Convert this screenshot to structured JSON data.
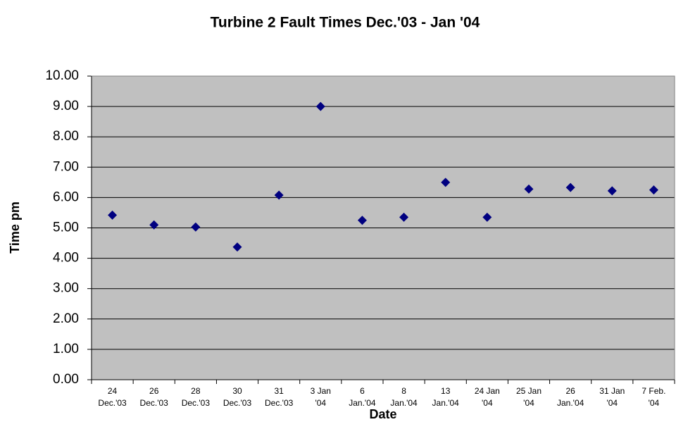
{
  "chart_data": {
    "type": "scatter",
    "title": "Turbine 2 Fault Times Dec.'03 - Jan '04",
    "x_label": "Date",
    "y_label": "Time pm",
    "categories": [
      "24\nDec.'03",
      "26\nDec.'03",
      "28\nDec.'03",
      "30\nDec.'03",
      "31\nDec.'03",
      "3 Jan\n'04",
      "6\nJan.'04",
      "8\nJan.'04",
      "13\nJan.'04",
      "24 Jan\n'04",
      "25 Jan\n'04",
      "26\nJan.'04",
      "31 Jan\n'04",
      "7 Feb.\n'04"
    ],
    "values": [
      5.42,
      5.1,
      5.03,
      4.37,
      6.08,
      9.0,
      5.25,
      5.35,
      6.5,
      5.35,
      6.28,
      6.33,
      6.22,
      6.25
    ],
    "color": "#000080",
    "ylim": [
      0,
      10
    ],
    "yticks": [
      {
        "value": 0,
        "label": "0.00"
      },
      {
        "value": 1,
        "label": "1.00"
      },
      {
        "value": 2,
        "label": "2.00"
      },
      {
        "value": 3,
        "label": "3.00"
      },
      {
        "value": 4,
        "label": "4.00"
      },
      {
        "value": 5,
        "label": "5.00"
      },
      {
        "value": 6,
        "label": "6.00"
      },
      {
        "value": 7,
        "label": "7.00"
      },
      {
        "value": 8,
        "label": "8.00"
      },
      {
        "value": 9,
        "label": "9.00"
      },
      {
        "value": 10,
        "label": "10.00"
      }
    ],
    "grid": true
  }
}
